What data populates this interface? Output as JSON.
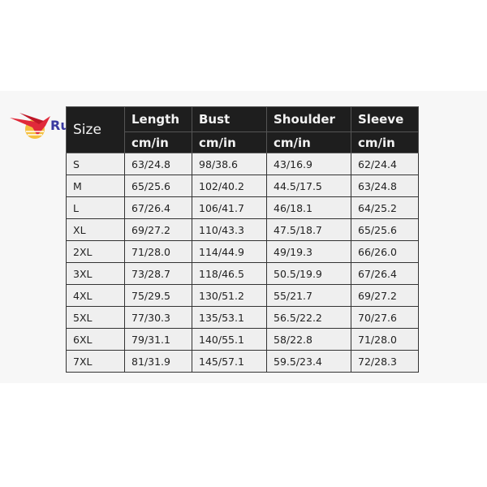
{
  "logo": {
    "text": "Ru",
    "colors": {
      "wing": "#e02a3a",
      "sun": "#f5c040",
      "text": "#3a3aa0"
    }
  },
  "table": {
    "size_header": "Size",
    "columns": [
      "Length",
      "Bust",
      "Shoulder",
      "Sleeve"
    ],
    "units": [
      "cm/in",
      "cm/in",
      "cm/in",
      "cm/in"
    ],
    "rows": [
      [
        "S",
        "63/24.8",
        "98/38.6",
        "43/16.9",
        "62/24.4"
      ],
      [
        "M",
        "65/25.6",
        "102/40.2",
        "44.5/17.5",
        "63/24.8"
      ],
      [
        "L",
        "67/26.4",
        "106/41.7",
        "46/18.1",
        "64/25.2"
      ],
      [
        "XL",
        "69/27.2",
        "110/43.3",
        "47.5/18.7",
        "65/25.6"
      ],
      [
        "2XL",
        "71/28.0",
        "114/44.9",
        "49/19.3",
        "66/26.0"
      ],
      [
        "3XL",
        "73/28.7",
        "118/46.5",
        "50.5/19.9",
        "67/26.4"
      ],
      [
        "4XL",
        "75/29.5",
        "130/51.2",
        "55/21.7",
        "69/27.2"
      ],
      [
        "5XL",
        "77/30.3",
        "135/53.1",
        "56.5/22.2",
        "70/27.6"
      ],
      [
        "6XL",
        "79/31.1",
        "140/55.1",
        "58/22.8",
        "71/28.0"
      ],
      [
        "7XL",
        "81/31.9",
        "145/57.1",
        "59.5/23.4",
        "72/28.3"
      ]
    ]
  }
}
